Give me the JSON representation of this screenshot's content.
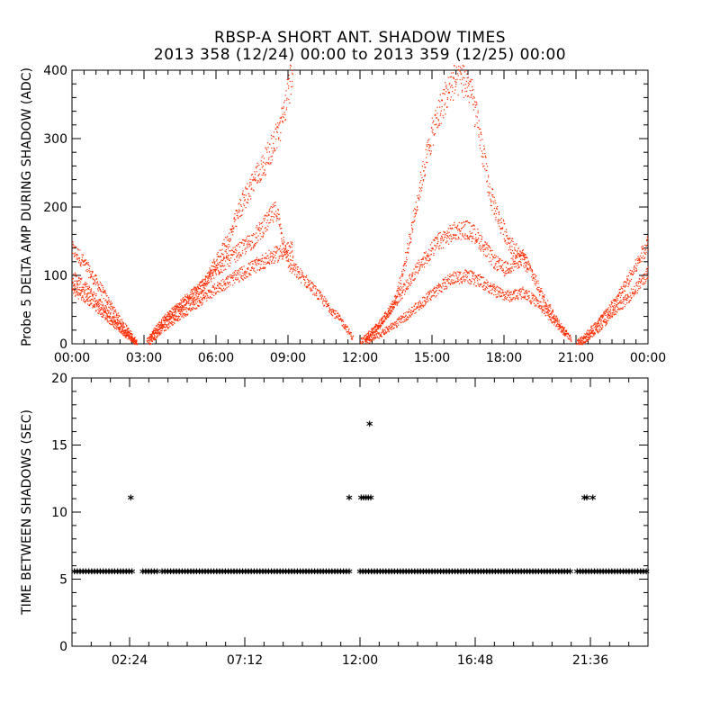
{
  "title": "RBSP-A SHORT ANT. SHADOW TIMES",
  "subtitle": "2013 358 (12/24) 00:00 to 2013 359 (12/25) 00:00",
  "colors": {
    "point_color": "#ff2a00",
    "axis_color": "#000000"
  },
  "chart_data": [
    {
      "type": "scatter",
      "title": "RBSP-A SHORT ANT. SHADOW TIMES",
      "ylabel": "Probe 5 DELTA AMP DURING SHADOW (ADC)",
      "xlabel": "",
      "x_unit": "hours",
      "xlim": [
        0,
        24
      ],
      "ylim": [
        0,
        400
      ],
      "xtick_values": [
        0,
        3,
        6,
        9,
        12,
        15,
        18,
        21,
        24
      ],
      "xtick_labels": [
        "00:00",
        "03:00",
        "06:00",
        "09:00",
        "12:00",
        "15:00",
        "18:00",
        "21:00",
        "00:00"
      ],
      "ytick_values": [
        0,
        100,
        200,
        300,
        400
      ],
      "ytick_labels": [
        "0",
        "100",
        "200",
        "300",
        "400"
      ],
      "grid": false,
      "series": [
        {
          "points": [
            [
              0.0,
              138
            ],
            [
              0.3,
              128
            ],
            [
              0.6,
              112
            ],
            [
              0.9,
              96
            ],
            [
              1.2,
              80
            ],
            [
              1.5,
              62
            ],
            [
              1.8,
              45
            ],
            [
              2.1,
              30
            ],
            [
              2.4,
              16
            ],
            [
              2.7,
              2
            ]
          ]
        },
        {
          "points": [
            [
              0.0,
              98
            ],
            [
              0.3,
              90
            ],
            [
              0.6,
              80
            ],
            [
              0.9,
              70
            ],
            [
              1.2,
              58
            ],
            [
              1.5,
              45
            ],
            [
              1.8,
              33
            ],
            [
              2.1,
              22
            ],
            [
              2.4,
              11
            ],
            [
              2.7,
              1
            ]
          ]
        },
        {
          "points": [
            [
              0.0,
              80
            ],
            [
              0.3,
              74
            ],
            [
              0.6,
              66
            ],
            [
              0.9,
              58
            ],
            [
              1.2,
              48
            ],
            [
              1.5,
              38
            ],
            [
              1.8,
              28
            ],
            [
              2.1,
              18
            ],
            [
              2.4,
              9
            ],
            [
              2.7,
              0
            ]
          ]
        },
        {
          "points": [
            [
              3.1,
              4
            ],
            [
              3.5,
              24
            ],
            [
              4.0,
              42
            ],
            [
              4.5,
              58
            ],
            [
              5.0,
              74
            ],
            [
              5.5,
              90
            ],
            [
              6.0,
              108
            ],
            [
              6.5,
              124
            ],
            [
              7.0,
              138
            ],
            [
              7.5,
              152
            ],
            [
              8.0,
              174
            ],
            [
              8.5,
              196
            ],
            [
              9.0,
              118
            ],
            [
              9.4,
              104
            ],
            [
              9.8,
              90
            ],
            [
              10.3,
              70
            ],
            [
              10.8,
              50
            ],
            [
              11.3,
              30
            ],
            [
              11.7,
              8
            ]
          ]
        },
        {
          "points": [
            [
              3.2,
              8
            ],
            [
              3.7,
              28
            ],
            [
              4.2,
              46
            ],
            [
              4.8,
              62
            ],
            [
              5.4,
              82
            ],
            [
              6.0,
              120
            ],
            [
              6.6,
              160
            ],
            [
              7.0,
              200
            ],
            [
              7.5,
              236
            ],
            [
              8.0,
              264
            ],
            [
              8.4,
              296
            ],
            [
              8.7,
              322
            ],
            [
              9.0,
              370
            ],
            [
              9.2,
              410
            ]
          ]
        },
        {
          "points": [
            [
              3.2,
              2
            ],
            [
              3.7,
              20
            ],
            [
              4.3,
              38
            ],
            [
              4.9,
              52
            ],
            [
              5.5,
              68
            ],
            [
              6.0,
              82
            ],
            [
              6.6,
              94
            ],
            [
              7.2,
              106
            ],
            [
              7.8,
              118
            ],
            [
              8.3,
              128
            ],
            [
              8.8,
              136
            ],
            [
              9.2,
              138
            ]
          ]
        },
        {
          "points": [
            [
              12.0,
              4
            ],
            [
              12.4,
              16
            ],
            [
              12.8,
              30
            ],
            [
              13.2,
              48
            ],
            [
              13.6,
              68
            ],
            [
              14.0,
              90
            ],
            [
              14.4,
              112
            ],
            [
              14.8,
              130
            ],
            [
              15.2,
              148
            ],
            [
              15.6,
              158
            ],
            [
              16.0,
              166
            ],
            [
              16.4,
              168
            ],
            [
              16.8,
              160
            ],
            [
              17.2,
              140
            ],
            [
              17.6,
              120
            ],
            [
              18.0,
              110
            ],
            [
              18.4,
              118
            ],
            [
              18.8,
              128
            ],
            [
              19.2,
              100
            ],
            [
              19.6,
              70
            ],
            [
              20.0,
              46
            ],
            [
              20.4,
              24
            ],
            [
              20.8,
              6
            ]
          ]
        },
        {
          "points": [
            [
              12.2,
              8
            ],
            [
              12.8,
              28
            ],
            [
              13.4,
              60
            ],
            [
              13.8,
              110
            ],
            [
              14.2,
              180
            ],
            [
              14.6,
              250
            ],
            [
              15.0,
              310
            ],
            [
              15.4,
              350
            ],
            [
              15.8,
              380
            ],
            [
              16.2,
              392
            ],
            [
              16.6,
              372
            ],
            [
              17.0,
              300
            ],
            [
              17.4,
              220
            ],
            [
              17.8,
              180
            ],
            [
              18.2,
              150
            ],
            [
              18.6,
              130
            ],
            [
              19.0,
              112
            ]
          ]
        },
        {
          "points": [
            [
              12.2,
              2
            ],
            [
              12.8,
              14
            ],
            [
              13.4,
              28
            ],
            [
              14.0,
              44
            ],
            [
              14.6,
              62
            ],
            [
              15.2,
              80
            ],
            [
              15.8,
              96
            ],
            [
              16.4,
              100
            ],
            [
              17.0,
              92
            ],
            [
              17.6,
              78
            ],
            [
              18.2,
              70
            ],
            [
              18.8,
              76
            ],
            [
              19.4,
              60
            ],
            [
              20.0,
              36
            ],
            [
              20.6,
              14
            ]
          ]
        },
        {
          "points": [
            [
              21.0,
              2
            ],
            [
              21.4,
              14
            ],
            [
              21.8,
              28
            ],
            [
              22.2,
              44
            ],
            [
              22.6,
              62
            ],
            [
              23.0,
              84
            ],
            [
              23.4,
              108
            ],
            [
              23.7,
              130
            ],
            [
              24.0,
              150
            ]
          ]
        },
        {
          "points": [
            [
              21.1,
              0
            ],
            [
              21.5,
              10
            ],
            [
              21.9,
              22
            ],
            [
              22.3,
              36
            ],
            [
              22.7,
              52
            ],
            [
              23.1,
              66
            ],
            [
              23.5,
              82
            ],
            [
              23.8,
              96
            ],
            [
              24.0,
              104
            ]
          ]
        }
      ]
    },
    {
      "type": "scatter",
      "ylabel": "TIME BETWEEN SHADOWS (SEC)",
      "xlabel": "",
      "x_unit": "hours",
      "xlim": [
        0,
        24
      ],
      "ylim": [
        0,
        20
      ],
      "xtick_values": [
        2.4,
        7.2,
        12.0,
        16.8,
        21.6
      ],
      "xtick_labels": [
        "02:24",
        "07:12",
        "12:00",
        "16:48",
        "21:36"
      ],
      "ytick_values": [
        0,
        5,
        10,
        15,
        20
      ],
      "ytick_labels": [
        "0",
        "5",
        "10",
        "15",
        "20"
      ],
      "grid": false,
      "marker": "*",
      "baseline_value": 5.5,
      "baseline_segments": [
        [
          0.1,
          2.6
        ],
        [
          2.95,
          3.6
        ],
        [
          3.75,
          11.65
        ],
        [
          12.0,
          20.8
        ],
        [
          21.05,
          24.0
        ]
      ],
      "outliers": [
        [
          2.45,
          11.0
        ],
        [
          11.55,
          11.0
        ],
        [
          12.05,
          11.0
        ],
        [
          12.15,
          11.0
        ],
        [
          12.25,
          11.0
        ],
        [
          12.35,
          11.0
        ],
        [
          12.45,
          11.0
        ],
        [
          12.4,
          16.5
        ],
        [
          21.35,
          11.0
        ],
        [
          21.45,
          11.0
        ],
        [
          21.7,
          11.0
        ]
      ]
    }
  ]
}
